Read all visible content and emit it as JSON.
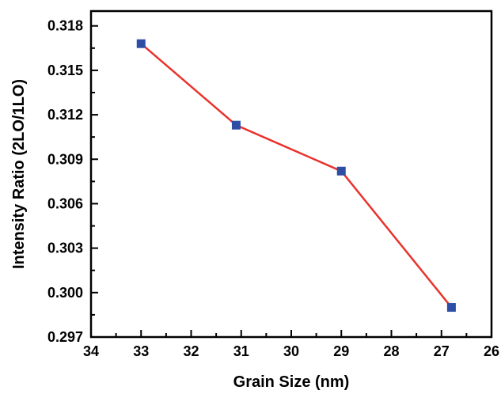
{
  "chart_data": {
    "type": "line",
    "xlabel": "Grain Size (nm)",
    "ylabel": "Intensity Ratio (2LO/1LO)",
    "xlim": [
      34,
      26
    ],
    "x_reversed": true,
    "ylim": [
      0.297,
      0.319
    ],
    "xticks": [
      "34",
      "33",
      "32",
      "31",
      "30",
      "29",
      "28",
      "27",
      "26"
    ],
    "yticks": [
      "0.297",
      "0.300",
      "0.303",
      "0.306",
      "0.309",
      "0.312",
      "0.315",
      "0.318"
    ],
    "grid": false,
    "series": [
      {
        "x": [
          33.0,
          31.1,
          29.0,
          26.8
        ],
        "y": [
          0.3168,
          0.3113,
          0.3082,
          0.299
        ],
        "line_color": "#e8332c",
        "marker": "square",
        "marker_color": "#2e4ea6"
      }
    ]
  }
}
